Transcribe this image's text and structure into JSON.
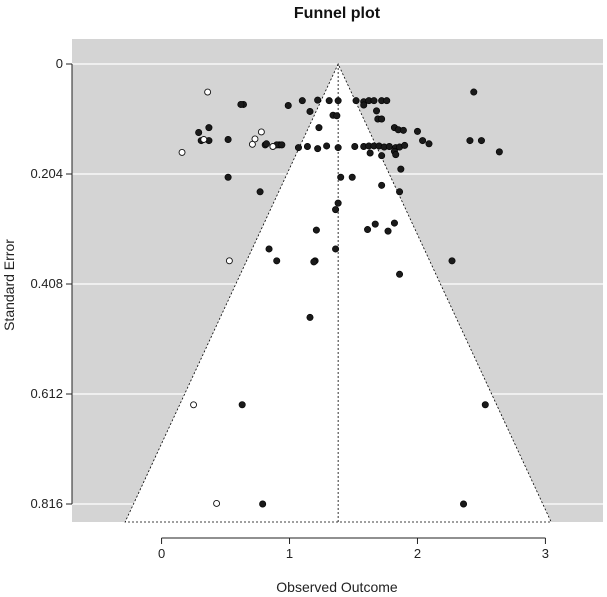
{
  "chart_data": {
    "type": "scatter",
    "title": "Funnel plot",
    "xlabel": "Observed Outcome",
    "ylabel": "Standard Error",
    "xlim": [
      -0.7,
      3.45
    ],
    "ylim": [
      0.85,
      0
    ],
    "x_ticks": [
      0,
      1,
      2,
      3
    ],
    "y_ticks": [
      0,
      0.204,
      0.408,
      0.612,
      0.816
    ],
    "y_tick_labels": [
      "0",
      "0.204",
      "0.408",
      "0.612",
      "0.816"
    ],
    "center_estimate": 1.38,
    "grid": "horizontal",
    "colors": {
      "background": "#d4d4d4",
      "funnel": "#ffffff",
      "observed_point": "#1a1a1a",
      "filled_point": "#ffffff",
      "grid": "#ffffff"
    },
    "series": [
      {
        "name": "observed",
        "points": [
          [
            0.64,
            0.075
          ],
          [
            0.62,
            0.075
          ],
          [
            0.99,
            0.077
          ],
          [
            1.1,
            0.068
          ],
          [
            1.22,
            0.067
          ],
          [
            1.31,
            0.068
          ],
          [
            1.38,
            0.068
          ],
          [
            1.52,
            0.068
          ],
          [
            1.58,
            0.07
          ],
          [
            1.62,
            0.068
          ],
          [
            1.66,
            0.068
          ],
          [
            1.72,
            0.068
          ],
          [
            1.76,
            0.068
          ],
          [
            1.58,
            0.076
          ],
          [
            1.68,
            0.087
          ],
          [
            1.16,
            0.088
          ],
          [
            1.34,
            0.095
          ],
          [
            1.37,
            0.096
          ],
          [
            1.69,
            0.102
          ],
          [
            1.72,
            0.102
          ],
          [
            2.44,
            0.052
          ],
          [
            0.37,
            0.118
          ],
          [
            0.29,
            0.127
          ],
          [
            1.23,
            0.118
          ],
          [
            1.82,
            0.118
          ],
          [
            1.85,
            0.122
          ],
          [
            1.89,
            0.123
          ],
          [
            2.0,
            0.125
          ],
          [
            0.31,
            0.142
          ],
          [
            0.37,
            0.142
          ],
          [
            0.52,
            0.14
          ],
          [
            0.81,
            0.15
          ],
          [
            0.82,
            0.148
          ],
          [
            0.92,
            0.15
          ],
          [
            2.04,
            0.142
          ],
          [
            2.09,
            0.148
          ],
          [
            2.41,
            0.142
          ],
          [
            2.5,
            0.142
          ],
          [
            2.64,
            0.163
          ],
          [
            0.9,
            0.15
          ],
          [
            0.94,
            0.15
          ],
          [
            1.07,
            0.155
          ],
          [
            1.14,
            0.153
          ],
          [
            1.22,
            0.157
          ],
          [
            1.29,
            0.152
          ],
          [
            1.38,
            0.155
          ],
          [
            1.51,
            0.153
          ],
          [
            1.58,
            0.153
          ],
          [
            1.62,
            0.152
          ],
          [
            1.66,
            0.152
          ],
          [
            1.7,
            0.152
          ],
          [
            1.74,
            0.154
          ],
          [
            1.78,
            0.153
          ],
          [
            1.83,
            0.155
          ],
          [
            1.86,
            0.154
          ],
          [
            1.9,
            0.151
          ],
          [
            1.82,
            0.162
          ],
          [
            1.83,
            0.168
          ],
          [
            1.63,
            0.165
          ],
          [
            1.72,
            0.17
          ],
          [
            1.87,
            0.195
          ],
          [
            0.52,
            0.21
          ],
          [
            1.4,
            0.21
          ],
          [
            1.49,
            0.21
          ],
          [
            1.72,
            0.225
          ],
          [
            0.77,
            0.237
          ],
          [
            1.86,
            0.237
          ],
          [
            1.38,
            0.258
          ],
          [
            1.36,
            0.27
          ],
          [
            1.67,
            0.297
          ],
          [
            1.61,
            0.307
          ],
          [
            1.21,
            0.308
          ],
          [
            1.77,
            0.31
          ],
          [
            1.82,
            0.295
          ],
          [
            0.84,
            0.343
          ],
          [
            1.36,
            0.343
          ],
          [
            0.9,
            0.365
          ],
          [
            1.2,
            0.365
          ],
          [
            1.19,
            0.367
          ],
          [
            2.27,
            0.365
          ],
          [
            1.86,
            0.39
          ],
          [
            1.16,
            0.47
          ],
          [
            0.63,
            0.632
          ],
          [
            2.53,
            0.632
          ],
          [
            0.79,
            0.816
          ],
          [
            2.36,
            0.816
          ]
        ]
      },
      {
        "name": "filled",
        "points": [
          [
            0.36,
            0.052
          ],
          [
            0.78,
            0.126
          ],
          [
            0.73,
            0.139
          ],
          [
            0.71,
            0.149
          ],
          [
            0.87,
            0.153
          ],
          [
            0.33,
            0.14
          ],
          [
            0.16,
            0.164
          ],
          [
            0.53,
            0.365
          ],
          [
            0.25,
            0.632
          ],
          [
            0.43,
            0.815
          ]
        ]
      }
    ]
  }
}
